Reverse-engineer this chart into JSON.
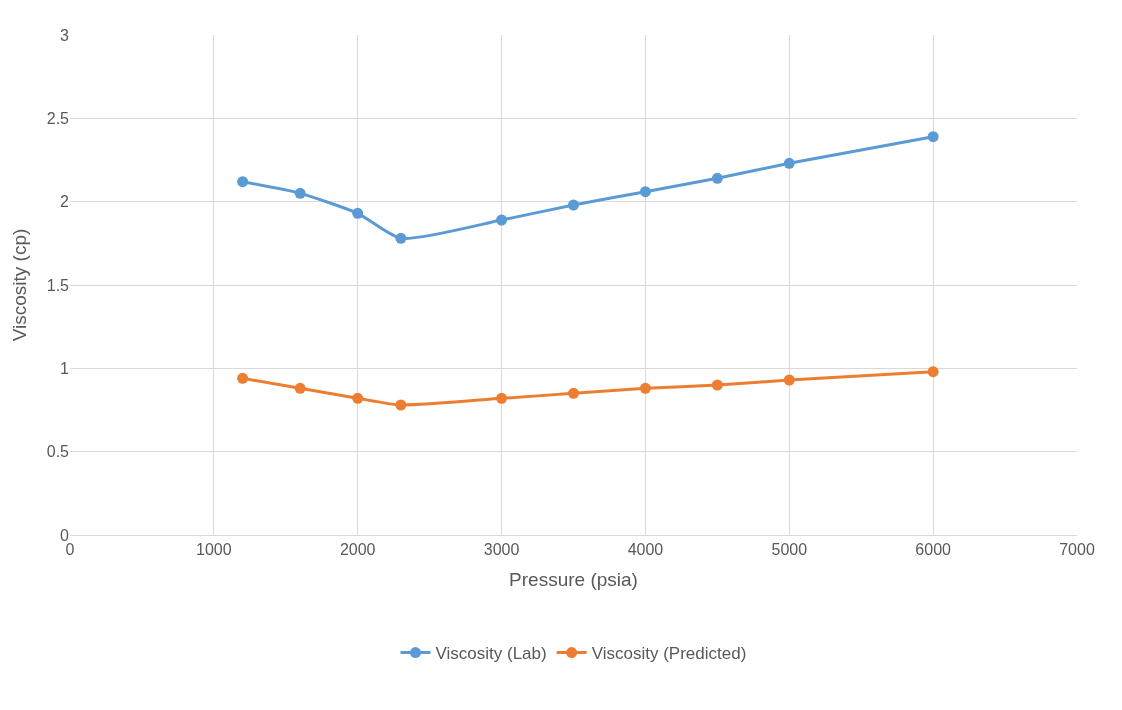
{
  "chart_data": {
    "type": "line",
    "xlabel": "Pressure (psia)",
    "ylabel": "Viscosity (cp)",
    "x": [
      1200,
      1600,
      2000,
      2300,
      3000,
      3500,
      4000,
      4500,
      5000,
      6000
    ],
    "series": [
      {
        "name": "Viscosity (Lab)",
        "color": "#5b9bd5",
        "values": [
          2.12,
          2.05,
          1.93,
          1.78,
          1.89,
          1.98,
          2.06,
          2.14,
          2.23,
          2.39
        ]
      },
      {
        "name": "Viscosity (Predicted)",
        "color": "#ed7d31",
        "values": [
          0.94,
          0.88,
          0.82,
          0.78,
          0.82,
          0.85,
          0.88,
          0.9,
          0.93,
          0.98
        ]
      }
    ],
    "xlim": [
      0,
      7000
    ],
    "xticks": [
      0,
      1000,
      2000,
      3000,
      4000,
      5000,
      6000,
      7000
    ],
    "ylim": [
      0,
      3
    ],
    "yticks": [
      0,
      0.5,
      1,
      1.5,
      2,
      2.5,
      3
    ],
    "grid": true,
    "legend": "bottom",
    "marker": "circle",
    "line_style": "solid"
  }
}
